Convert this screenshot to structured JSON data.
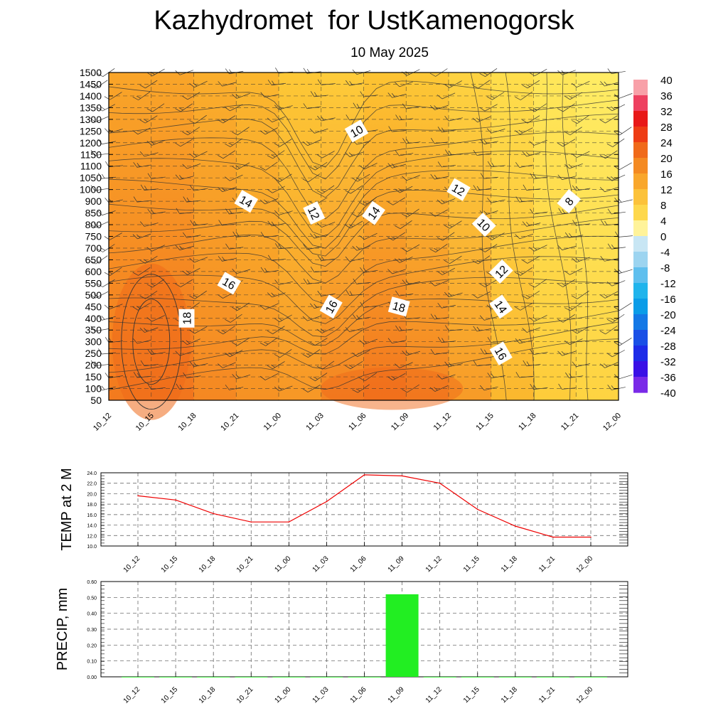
{
  "title": "Kazhydromet  for UstKamenogorsk",
  "subtitle": "10 May 2025",
  "chart_data": [
    {
      "type": "heatmap",
      "name": "temperature-cross-section",
      "x_categories": [
        "10_12",
        "10_15",
        "10_18",
        "10_21",
        "11_00",
        "11_03",
        "11_06",
        "11_09",
        "11_12",
        "11_15",
        "11_18",
        "11_21",
        "12_00"
      ],
      "y_levels": [
        50,
        100,
        150,
        200,
        250,
        300,
        350,
        400,
        450,
        500,
        550,
        600,
        650,
        700,
        750,
        800,
        850,
        900,
        1000,
        1050,
        1100,
        1150,
        1200,
        1250,
        1300,
        1350,
        1400,
        1450,
        1500
      ],
      "y_tick_labels": [
        "50",
        "100",
        "150",
        "200",
        "250",
        "300",
        "350",
        "400",
        "450",
        "500",
        "550",
        "600",
        "650",
        "700",
        "750",
        "800",
        "850",
        "900",
        "1000",
        "1050",
        "1100",
        "1150",
        "1200",
        "1250",
        "1300",
        "1350",
        "1400",
        "1450",
        "1500"
      ],
      "temperature_by_time": [
        {
          "time": "10_12",
          "bottom": 18,
          "top": 15
        },
        {
          "time": "10_15",
          "bottom": 22,
          "top": 16
        },
        {
          "time": "10_18",
          "bottom": 19,
          "top": 15
        },
        {
          "time": "10_21",
          "bottom": 18,
          "top": 14
        },
        {
          "time": "11_00",
          "bottom": 17,
          "top": 13
        },
        {
          "time": "11_03",
          "bottom": 17,
          "top": 10
        },
        {
          "time": "11_06",
          "bottom": 21,
          "top": 12
        },
        {
          "time": "11_09",
          "bottom": 20,
          "top": 12
        },
        {
          "time": "11_12",
          "bottom": 18,
          "top": 11
        },
        {
          "time": "11_15",
          "bottom": 15,
          "top": 9
        },
        {
          "time": "11_18",
          "bottom": 12,
          "top": 8
        },
        {
          "time": "11_21",
          "bottom": 10,
          "top": 6
        },
        {
          "time": "12_00",
          "bottom": 10,
          "top": 6
        }
      ],
      "contour_labels": [
        {
          "text": "10",
          "x": "11_06",
          "y": 1250,
          "angle": -30
        },
        {
          "text": "12",
          "x": "11_12",
          "y": 1000,
          "angle": 30
        },
        {
          "text": "8",
          "x": "11_21",
          "y": 900,
          "angle": -50
        },
        {
          "text": "14",
          "x": "10_21",
          "y": 900,
          "angle": 30
        },
        {
          "text": "12",
          "x": "11_03",
          "y": 850,
          "angle": 65
        },
        {
          "text": "14",
          "x": "11_06",
          "y": 850,
          "angle": -55
        },
        {
          "text": "10",
          "x": "11_15",
          "y": 800,
          "angle": 45
        },
        {
          "text": "12",
          "x": "11_15",
          "y": 600,
          "angle": -45
        },
        {
          "text": "16",
          "x": "10_21",
          "y": 550,
          "angle": 30
        },
        {
          "text": "16",
          "x": "11_03",
          "y": 450,
          "angle": -60
        },
        {
          "text": "18",
          "x": "11_09",
          "y": 450,
          "angle": 15
        },
        {
          "text": "14",
          "x": "11_15",
          "y": 450,
          "angle": 55
        },
        {
          "text": "18",
          "x": "10_18",
          "y": 400,
          "angle": -90
        },
        {
          "text": "16",
          "x": "11_15",
          "y": 250,
          "angle": 60
        }
      ],
      "colorbar": {
        "labels": [
          "40",
          "36",
          "32",
          "28",
          "24",
          "20",
          "16",
          "12",
          "8",
          "4",
          "0",
          "-4",
          "-8",
          "-12",
          "-16",
          "-20",
          "-24",
          "-28",
          "-32",
          "-36",
          "-40"
        ]
      }
    },
    {
      "type": "line",
      "name": "temp-2m",
      "ylabel": "TEMP at 2 M",
      "categories": [
        "10_12",
        "10_15",
        "10_18",
        "10_21",
        "11_00",
        "11_03",
        "11_06",
        "11_09",
        "11_12",
        "11_15",
        "11_18",
        "11_21",
        "12_00"
      ],
      "values": [
        19.6,
        18.8,
        16.2,
        14.6,
        14.6,
        18.5,
        23.6,
        23.4,
        22.0,
        17.0,
        13.8,
        11.7,
        11.7
      ],
      "ylim": [
        10.0,
        24.0
      ],
      "yticks": [
        "10.0",
        "12.0",
        "14.0",
        "16.0",
        "18.0",
        "20.0",
        "22.0",
        "24.0"
      ],
      "line_color": "#ee0000",
      "grid": true
    },
    {
      "type": "bar",
      "name": "precip",
      "ylabel": "PRECIP, mm",
      "categories": [
        "10_12",
        "10_15",
        "10_18",
        "10_21",
        "11_00",
        "11_03",
        "11_06",
        "11_09",
        "11_12",
        "11_15",
        "11_18",
        "11_21",
        "12_00"
      ],
      "values": [
        0,
        0,
        0,
        0,
        0,
        0,
        0,
        0.52,
        0,
        0,
        0,
        0,
        0
      ],
      "ylim": [
        0.0,
        0.6
      ],
      "yticks": [
        "0.00",
        "0.10",
        "0.20",
        "0.30",
        "0.40",
        "0.50",
        "0.60"
      ],
      "bar_color": "#22ee22",
      "grid": true
    }
  ]
}
